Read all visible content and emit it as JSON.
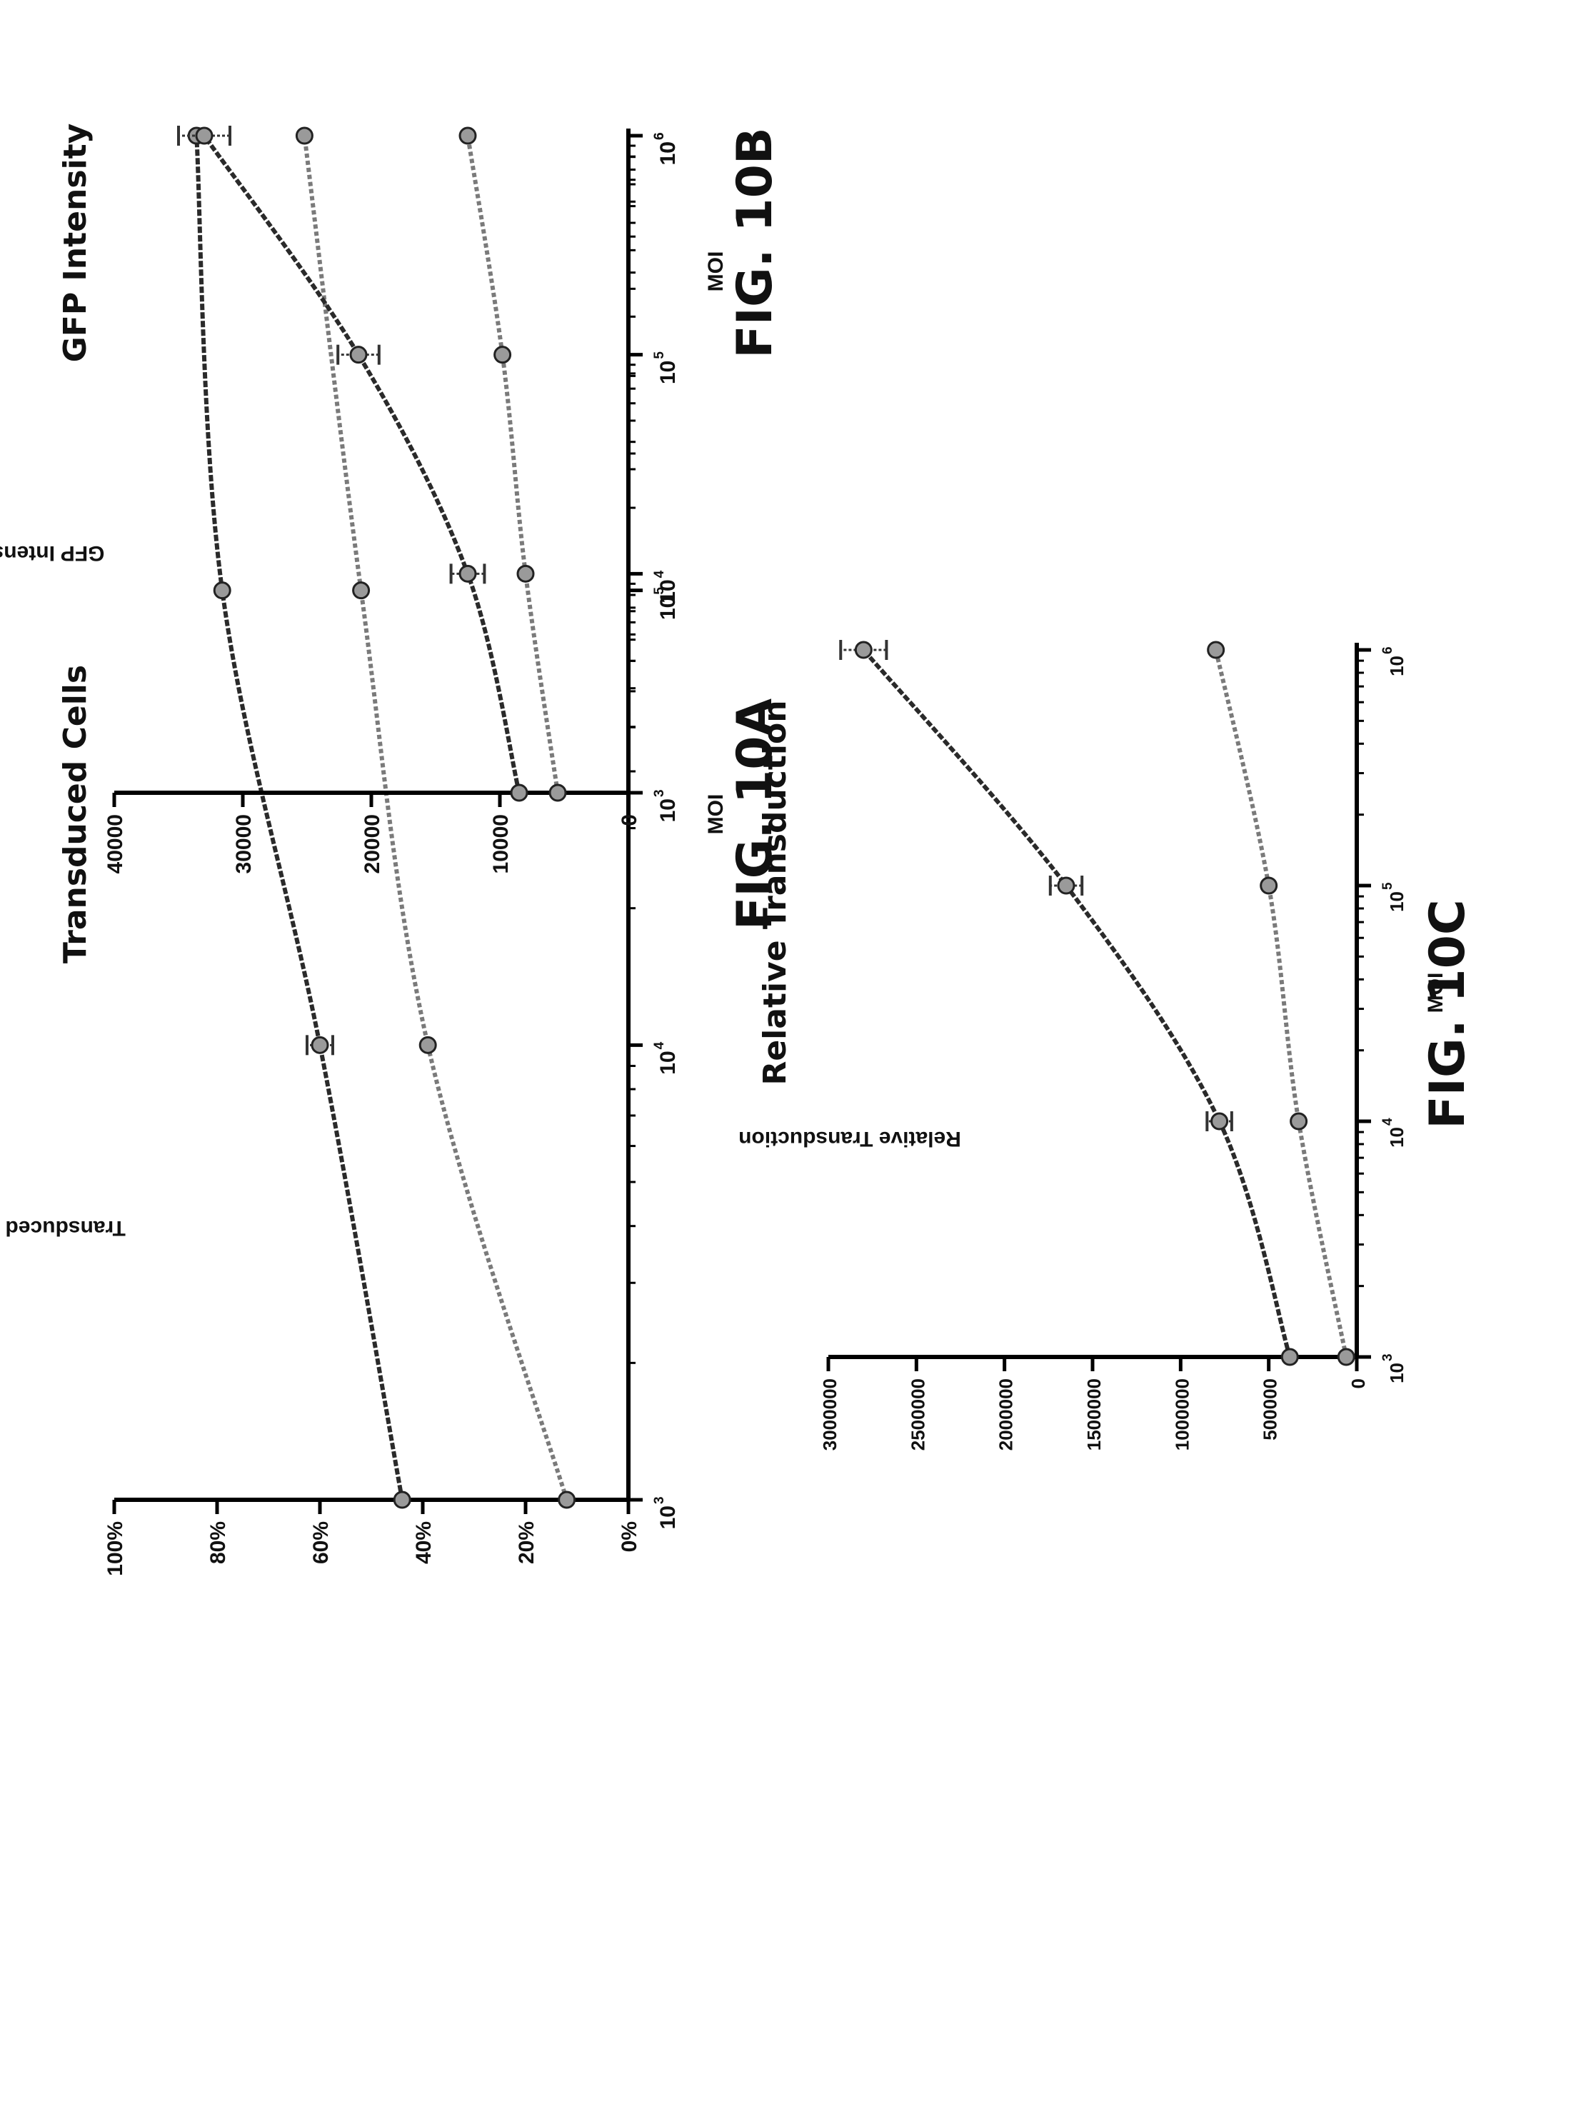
{
  "chart_data": [
    {
      "type": "line",
      "title": "Transduced Cells",
      "figure_label": "FIG. 10A",
      "xlabel": "MOI",
      "ylabel": "Transduced hCFs",
      "x_scale": "log",
      "xlim": [
        1000,
        1000000
      ],
      "x_ticks": [
        {
          "value": 1000,
          "base": "10",
          "exp": "3"
        },
        {
          "value": 10000,
          "base": "10",
          "exp": "4"
        },
        {
          "value": 100000,
          "base": "10",
          "exp": "5"
        },
        {
          "value": 1000000,
          "base": "10",
          "exp": "6"
        }
      ],
      "ylim": [
        0,
        100
      ],
      "y_ticks": [
        {
          "value": 0,
          "label": "0%"
        },
        {
          "value": 20,
          "label": "20%"
        },
        {
          "value": 40,
          "label": "40%"
        },
        {
          "value": 60,
          "label": "60%"
        },
        {
          "value": 80,
          "label": "80%"
        },
        {
          "value": 100,
          "label": "100%"
        }
      ],
      "x": [
        1000,
        10000,
        100000,
        1000000
      ],
      "series": [
        {
          "values": [
            44,
            60,
            79,
            84
          ],
          "errors": [
            0,
            2.5,
            0,
            0
          ],
          "color": "#2a2a2a"
        },
        {
          "values": [
            12,
            39,
            52,
            63
          ],
          "errors": [
            0,
            0,
            0,
            0
          ],
          "color": "#7a7a7a"
        }
      ]
    },
    {
      "type": "line",
      "title": "GFP Intensity",
      "figure_label": "FIG. 10B",
      "xlabel": "MOI",
      "ylabel": "GFP Intensity",
      "x_scale": "log",
      "xlim": [
        1000,
        1000000
      ],
      "x_ticks": [
        {
          "value": 1000,
          "base": "10",
          "exp": "3"
        },
        {
          "value": 10000,
          "base": "10",
          "exp": "4"
        },
        {
          "value": 100000,
          "base": "10",
          "exp": "5"
        },
        {
          "value": 1000000,
          "base": "10",
          "exp": "6"
        }
      ],
      "ylim": [
        0,
        40000
      ],
      "y_ticks": [
        {
          "value": 0,
          "label": "0"
        },
        {
          "value": 10000,
          "label": "10000"
        },
        {
          "value": 20000,
          "label": "20000"
        },
        {
          "value": 30000,
          "label": "30000"
        },
        {
          "value": 40000,
          "label": "40000"
        }
      ],
      "x": [
        1000,
        10000,
        100000,
        1000000
      ],
      "series": [
        {
          "values": [
            8500,
            12500,
            21000,
            33000
          ],
          "errors": [
            0,
            1300,
            1600,
            2000
          ],
          "color": "#2a2a2a"
        },
        {
          "values": [
            5500,
            8000,
            9800,
            12500
          ],
          "errors": [
            0,
            0,
            0,
            0
          ],
          "color": "#7a7a7a"
        }
      ]
    },
    {
      "type": "line",
      "title": "Relative Transduction",
      "figure_label": "FIG. 10C",
      "xlabel": "MOI",
      "ylabel": "Relative Transduction",
      "x_scale": "log",
      "xlim": [
        1000,
        1000000
      ],
      "x_ticks": [
        {
          "value": 1000,
          "base": "10",
          "exp": "3"
        },
        {
          "value": 10000,
          "base": "10",
          "exp": "4"
        },
        {
          "value": 100000,
          "base": "10",
          "exp": "5"
        },
        {
          "value": 1000000,
          "base": "10",
          "exp": "6"
        }
      ],
      "ylim": [
        0,
        3000000
      ],
      "y_ticks": [
        {
          "value": 0,
          "label": "0"
        },
        {
          "value": 500000,
          "label": "500000"
        },
        {
          "value": 1000000,
          "label": "1000000"
        },
        {
          "value": 1500000,
          "label": "1500000"
        },
        {
          "value": 2000000,
          "label": "2000000"
        },
        {
          "value": 2500000,
          "label": "2500000"
        },
        {
          "value": 3000000,
          "label": "3000000"
        }
      ],
      "x": [
        1000,
        10000,
        100000,
        1000000
      ],
      "series": [
        {
          "values": [
            380000,
            780000,
            1650000,
            2800000
          ],
          "errors": [
            0,
            70000,
            90000,
            130000
          ],
          "color": "#2a2a2a"
        },
        {
          "values": [
            60000,
            330000,
            500000,
            800000
          ],
          "errors": [
            0,
            0,
            0,
            0
          ],
          "color": "#7a7a7a"
        }
      ]
    }
  ]
}
